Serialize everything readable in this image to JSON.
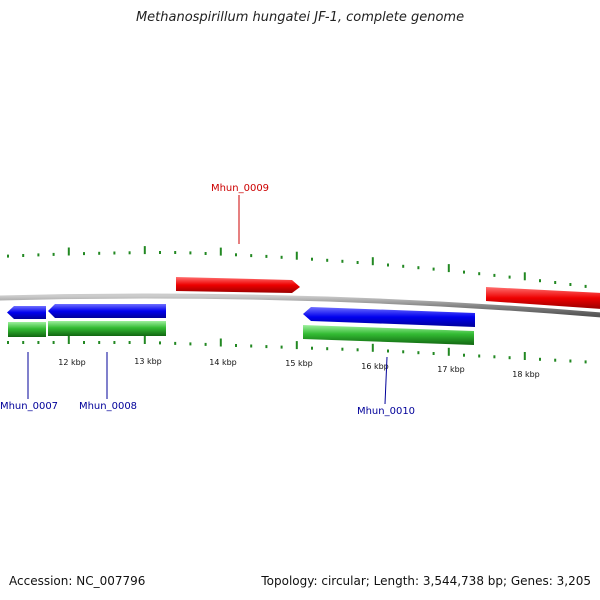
{
  "title": "Methanospirillum hungatei JF-1, complete genome",
  "footer": {
    "accession": "Accession: NC_007796",
    "summary": "Topology: circular; Length: 3,544,738 bp; Genes: 3,205"
  },
  "colors": {
    "forward_gene": "#e00000",
    "reverse_gene": "#0000e0",
    "cds": "#22aa22",
    "backbone": "#888888",
    "tick": "#228822",
    "label_forward": "#cc0000",
    "label_reverse": "#000099"
  },
  "scale_labels": [
    "12 kbp",
    "13 kbp",
    "14 kbp",
    "15 kbp",
    "16 kbp",
    "17 kbp",
    "18 kbp"
  ],
  "gene_labels": {
    "mhun_0007": "Mhun_0007",
    "mhun_0008": "Mhun_0008",
    "mhun_0009": "Mhun_0009",
    "mhun_0010": "Mhun_0010"
  }
}
